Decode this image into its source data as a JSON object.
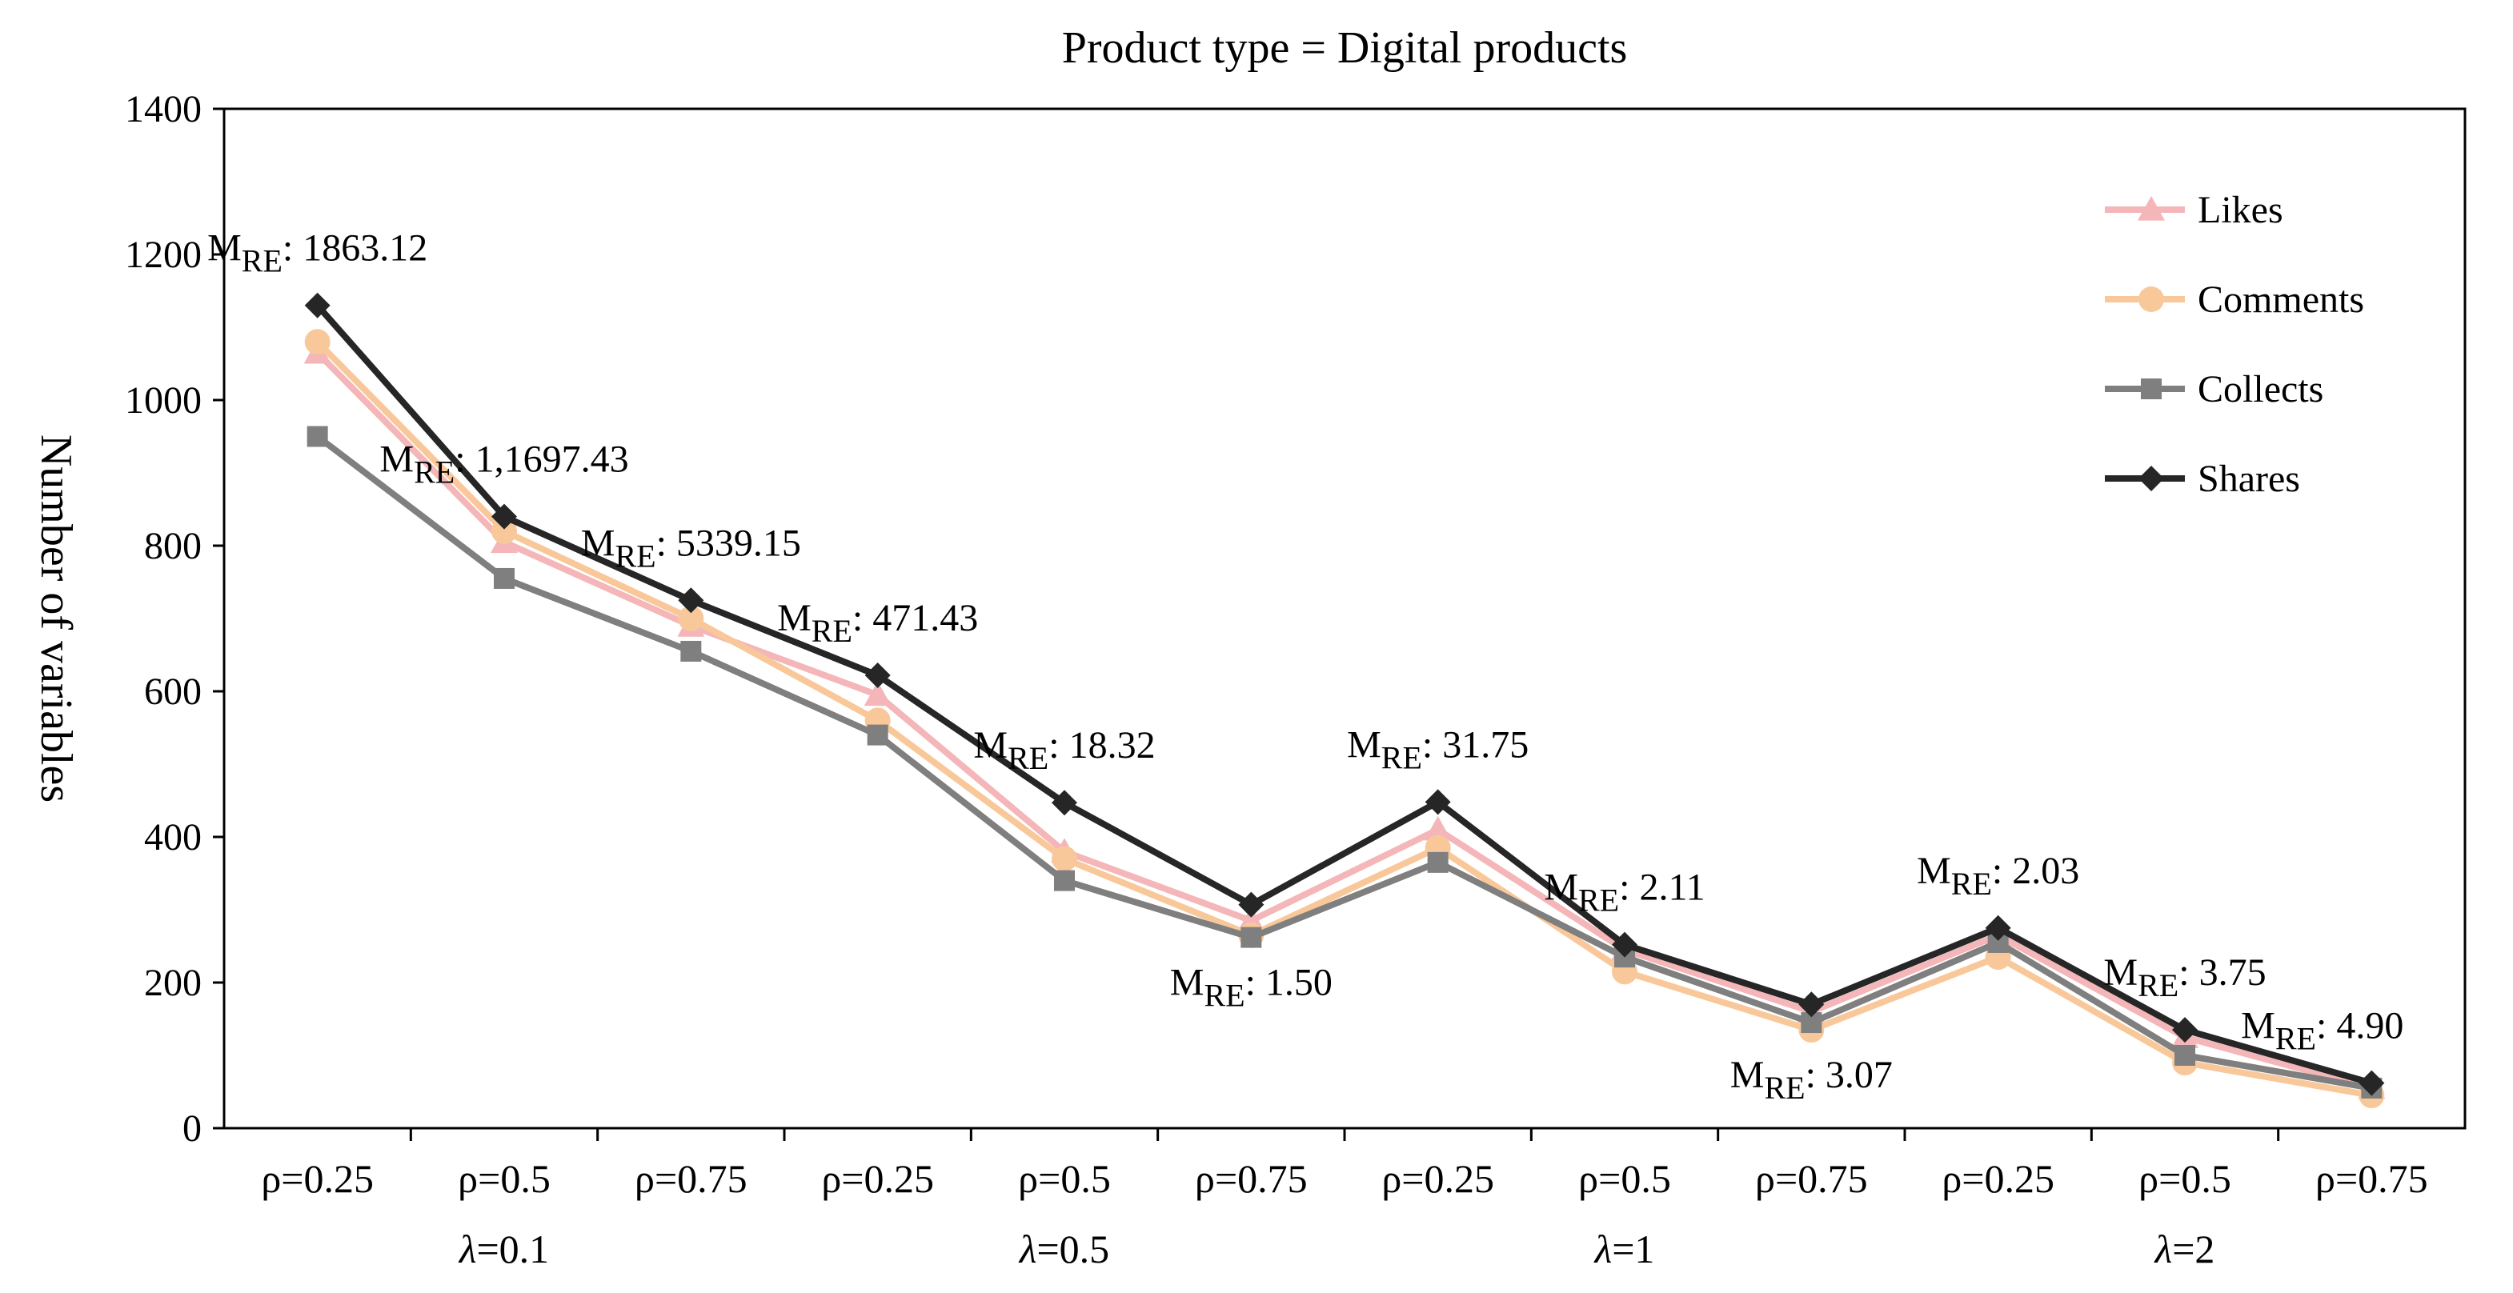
{
  "chart_data": {
    "type": "line",
    "title": "Product type = Digital products",
    "ylabel": "Number of variables",
    "xlabel": "",
    "ylim": [
      0,
      1400
    ],
    "yticks": [
      0,
      200,
      400,
      600,
      800,
      1000,
      1200,
      1400
    ],
    "categories": [
      "ρ=0.25",
      "ρ=0.5",
      "ρ=0.75",
      "ρ=0.25",
      "ρ=0.5",
      "ρ=0.75",
      "ρ=0.25",
      "ρ=0.5",
      "ρ=0.75",
      "ρ=0.25",
      "ρ=0.5",
      "ρ=0.75"
    ],
    "groups": [
      {
        "label": "λ=0.1",
        "prefix": "λ",
        "value": "=0.1"
      },
      {
        "label": "λ=0.5",
        "prefix": "λ",
        "value": "=0.5"
      },
      {
        "label": "λ=1",
        "prefix": "λ",
        "value": "=1"
      },
      {
        "label": "λ=2",
        "prefix": "λ",
        "value": "=2"
      }
    ],
    "grid": false,
    "legend_position": "top-right",
    "series": [
      {
        "name": "Likes",
        "color": "#f4b6b8",
        "marker": "triangle",
        "values": [
          1065,
          805,
          690,
          595,
          380,
          285,
          410,
          245,
          160,
          265,
          125,
          55
        ]
      },
      {
        "name": "Comments",
        "color": "#f9c89a",
        "marker": "circle",
        "values": [
          1080,
          820,
          700,
          560,
          370,
          265,
          385,
          215,
          135,
          235,
          90,
          45
        ]
      },
      {
        "name": "Collects",
        "color": "#7f7f7f",
        "marker": "square",
        "values": [
          950,
          755,
          655,
          540,
          340,
          262,
          365,
          235,
          145,
          255,
          100,
          55
        ]
      },
      {
        "name": "Shares",
        "color": "#262626",
        "marker": "diamond",
        "values": [
          1130,
          840,
          725,
          622,
          447,
          307,
          448,
          252,
          170,
          275,
          135,
          62
        ]
      }
    ],
    "annotations": [
      {
        "index": 0,
        "main": "M",
        "sub": "RE",
        "text": ": 1863.12",
        "placement": "above"
      },
      {
        "index": 1,
        "main": "M",
        "sub": "RE",
        "text": ": 1,1697.43",
        "placement": "above"
      },
      {
        "index": 2,
        "main": "M",
        "sub": "RE",
        "text": ": 5339.15",
        "placement": "above"
      },
      {
        "index": 3,
        "main": "M",
        "sub": "RE",
        "text": ": 471.43",
        "placement": "above"
      },
      {
        "index": 4,
        "main": "M",
        "sub": "RE",
        "text": ": 18.32",
        "placement": "above"
      },
      {
        "index": 5,
        "main": "M",
        "sub": "RE",
        "text": ": 1.50",
        "placement": "below"
      },
      {
        "index": 6,
        "main": "M",
        "sub": "RE",
        "text": ": 31.75",
        "placement": "above"
      },
      {
        "index": 7,
        "main": "M",
        "sub": "RE",
        "text": ": 2.11",
        "placement": "above"
      },
      {
        "index": 8,
        "main": "M",
        "sub": "RE",
        "text": ": 3.07",
        "placement": "below"
      },
      {
        "index": 9,
        "main": "M",
        "sub": "RE",
        "text": ": 2.03",
        "placement": "above"
      },
      {
        "index": 10,
        "main": "M",
        "sub": "RE",
        "text": ": 3.75",
        "placement": "above"
      },
      {
        "index": 11,
        "main": "M",
        "sub": "RE",
        "text": ": 4.90",
        "placement": "above"
      }
    ]
  }
}
